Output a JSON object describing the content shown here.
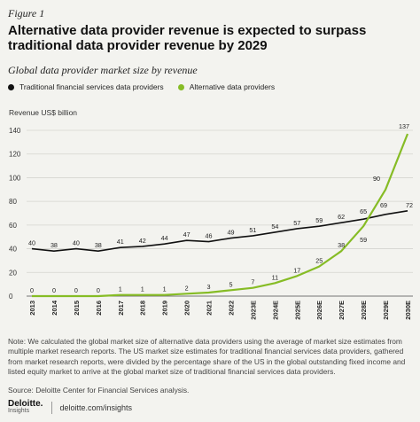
{
  "figure_label": "Figure 1",
  "title": "Alternative data provider revenue is expected to surpass traditional data provider revenue by 2029",
  "subtitle": "Global data provider market size by revenue",
  "legend": [
    {
      "label": "Traditional financial services data providers",
      "color": "#111111"
    },
    {
      "label": "Alternative data providers",
      "color": "#86bc25"
    }
  ],
  "chart_data": {
    "type": "line",
    "ylabel": "Revenue US$ billion",
    "ylim": [
      0,
      140
    ],
    "yticks": [
      0,
      20,
      40,
      60,
      80,
      100,
      120,
      140
    ],
    "grid": true,
    "legend_position": "top",
    "categories": [
      "2013",
      "2014",
      "2015",
      "2016",
      "2017",
      "2018",
      "2019",
      "2020",
      "2021",
      "2022",
      "2023E",
      "2024E",
      "2025E",
      "2026E",
      "2027E",
      "2028E",
      "2029E",
      "2030E"
    ],
    "series": [
      {
        "name": "Traditional financial services data providers",
        "color": "#111111",
        "values": [
          40,
          38,
          40,
          38,
          41,
          42,
          44,
          47,
          46,
          49,
          51,
          54,
          57,
          59,
          62,
          65,
          69,
          72
        ]
      },
      {
        "name": "Alternative data providers",
        "color": "#86bc25",
        "values": [
          0,
          0,
          0,
          0,
          1,
          1,
          1,
          2,
          3,
          5,
          7,
          11,
          17,
          25,
          38,
          59,
          90,
          137
        ]
      }
    ]
  },
  "note": "Note: We calculated the global market size of alternative data providers using the average of market size estimates from multiple market research reports. The US market size estimates for traditional financial services data providers, gathered from market research reports, were divided by the percentage share of the US in the global outstanding fixed income and listed equity market to arrive at the global market size of traditional financial services data providers.",
  "source": "Source: Deloitte Center for Financial Services analysis.",
  "footer": {
    "logo_text": "Deloitte.",
    "logo_sub": "Insights",
    "url": "deloitte.com/insights"
  }
}
